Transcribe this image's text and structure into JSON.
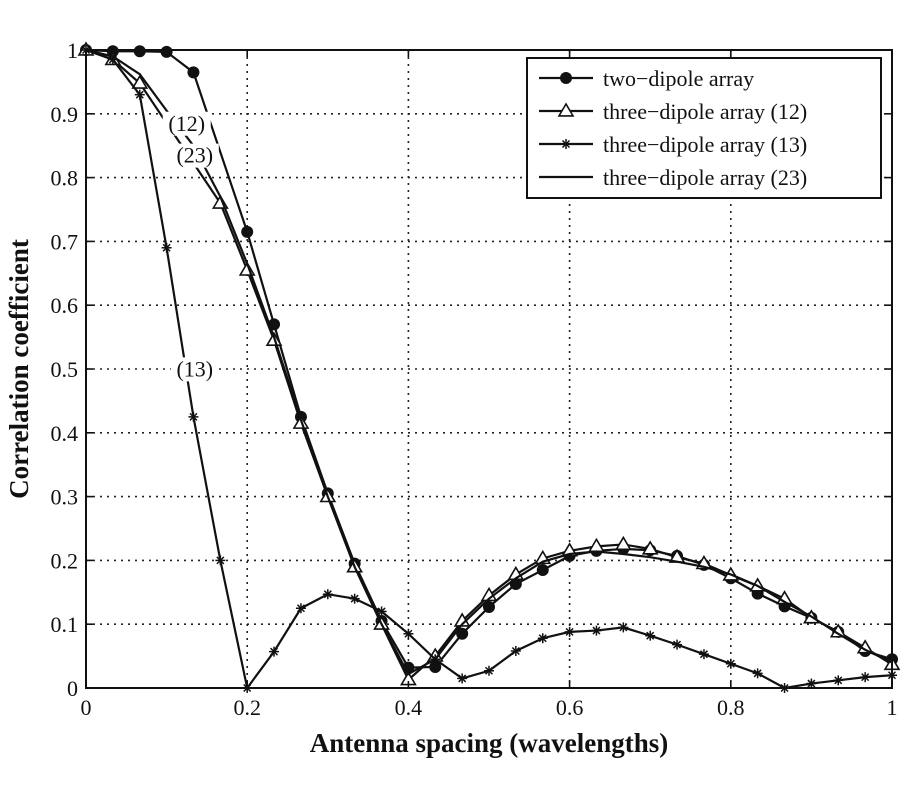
{
  "chart_data": {
    "type": "line",
    "title": "",
    "xlabel": "Antenna spacing (wavelengths)",
    "ylabel": "Correlation coefficient",
    "xlim": [
      0,
      1
    ],
    "ylim": [
      0,
      1
    ],
    "grid": true,
    "legend_position": "top-right",
    "xticks": [
      "0",
      "0.2",
      "0.4",
      "0.6",
      "0.8",
      "1"
    ],
    "yticks": [
      "0",
      "0.1",
      "0.2",
      "0.3",
      "0.4",
      "0.5",
      "0.6",
      "0.7",
      "0.8",
      "0.9",
      "1"
    ],
    "series": [
      {
        "name": "two−dipole array",
        "marker": "circle",
        "x": [
          0,
          0.0333,
          0.0667,
          0.1,
          0.1333,
          0.2,
          0.2333,
          0.2667,
          0.3,
          0.3333,
          0.3667,
          0.4,
          0.4333,
          0.4667,
          0.5,
          0.5333,
          0.5667,
          0.6,
          0.6333,
          0.6667,
          0.7,
          0.7333,
          0.7667,
          0.8,
          0.8333,
          0.8667,
          0.9,
          0.9333,
          0.9667,
          1.0
        ],
        "y": [
          1.0,
          0.998,
          0.998,
          0.997,
          0.965,
          0.715,
          0.57,
          0.425,
          0.305,
          0.195,
          0.105,
          0.032,
          0.033,
          0.085,
          0.127,
          0.163,
          0.185,
          0.207,
          0.215,
          0.218,
          0.216,
          0.207,
          0.193,
          0.172,
          0.148,
          0.128,
          0.11,
          0.088,
          0.058,
          0.045
        ]
      },
      {
        "name": "three−dipole array (12)",
        "marker": "triangle",
        "x": [
          0,
          0.0333,
          0.0667,
          0.1667,
          0.2,
          0.2333,
          0.2667,
          0.3,
          0.3333,
          0.3667,
          0.4,
          0.4333,
          0.4667,
          0.5,
          0.5333,
          0.5667,
          0.6,
          0.6333,
          0.6667,
          0.7,
          0.7333,
          0.7667,
          0.8,
          0.8333,
          0.8667,
          0.9,
          0.9333,
          0.9667,
          1.0
        ],
        "y": [
          1.0,
          0.985,
          0.948,
          0.76,
          0.655,
          0.545,
          0.415,
          0.3,
          0.19,
          0.1,
          0.013,
          0.05,
          0.105,
          0.145,
          0.178,
          0.203,
          0.215,
          0.222,
          0.225,
          0.218,
          0.205,
          0.195,
          0.177,
          0.16,
          0.14,
          0.11,
          0.088,
          0.063,
          0.037
        ]
      },
      {
        "name": "three−dipole array (13)",
        "marker": "asterisk",
        "x": [
          0,
          0.0333,
          0.0667,
          0.1,
          0.1333,
          0.1667,
          0.2,
          0.2333,
          0.2667,
          0.3,
          0.3333,
          0.3667,
          0.4,
          0.4333,
          0.4667,
          0.5,
          0.5333,
          0.5667,
          0.6,
          0.6333,
          0.6667,
          0.7,
          0.7333,
          0.7667,
          0.8,
          0.8333,
          0.8667,
          0.9,
          0.9333,
          0.9667,
          1.0
        ],
        "y": [
          1.0,
          0.985,
          0.93,
          0.69,
          0.425,
          0.2,
          0.0,
          0.057,
          0.125,
          0.147,
          0.14,
          0.12,
          0.085,
          0.045,
          0.015,
          0.027,
          0.058,
          0.078,
          0.088,
          0.09,
          0.095,
          0.082,
          0.068,
          0.053,
          0.038,
          0.023,
          0.0,
          0.007,
          0.012,
          0.017,
          0.02
        ]
      },
      {
        "name": "three−dipole array (23)",
        "marker": "none",
        "x": [
          0,
          0.0333,
          0.0667,
          0.1,
          0.1333,
          0.1667,
          0.2,
          0.2333,
          0.2667,
          0.3,
          0.3333,
          0.3667,
          0.4,
          0.4333,
          0.4667,
          0.5,
          0.5333,
          0.5667,
          0.6,
          0.6333,
          0.6667,
          0.7,
          0.7333,
          0.7667,
          0.8,
          0.8333,
          0.8667,
          0.9,
          0.9333,
          0.9667,
          1.0
        ],
        "y": [
          1.0,
          0.99,
          0.962,
          0.905,
          0.85,
          0.77,
          0.665,
          0.55,
          0.42,
          0.3,
          0.19,
          0.1,
          0.022,
          0.045,
          0.1,
          0.14,
          0.172,
          0.198,
          0.21,
          0.214,
          0.21,
          0.205,
          0.198,
          0.19,
          0.178,
          0.16,
          0.135,
          0.112,
          0.085,
          0.06,
          0.04
        ]
      }
    ],
    "annotations": [
      {
        "text": "(12)",
        "x": 0.125,
        "y": 0.875
      },
      {
        "text": "(23)",
        "x": 0.135,
        "y": 0.825
      },
      {
        "text": "(13)",
        "x": 0.135,
        "y": 0.49
      }
    ]
  }
}
